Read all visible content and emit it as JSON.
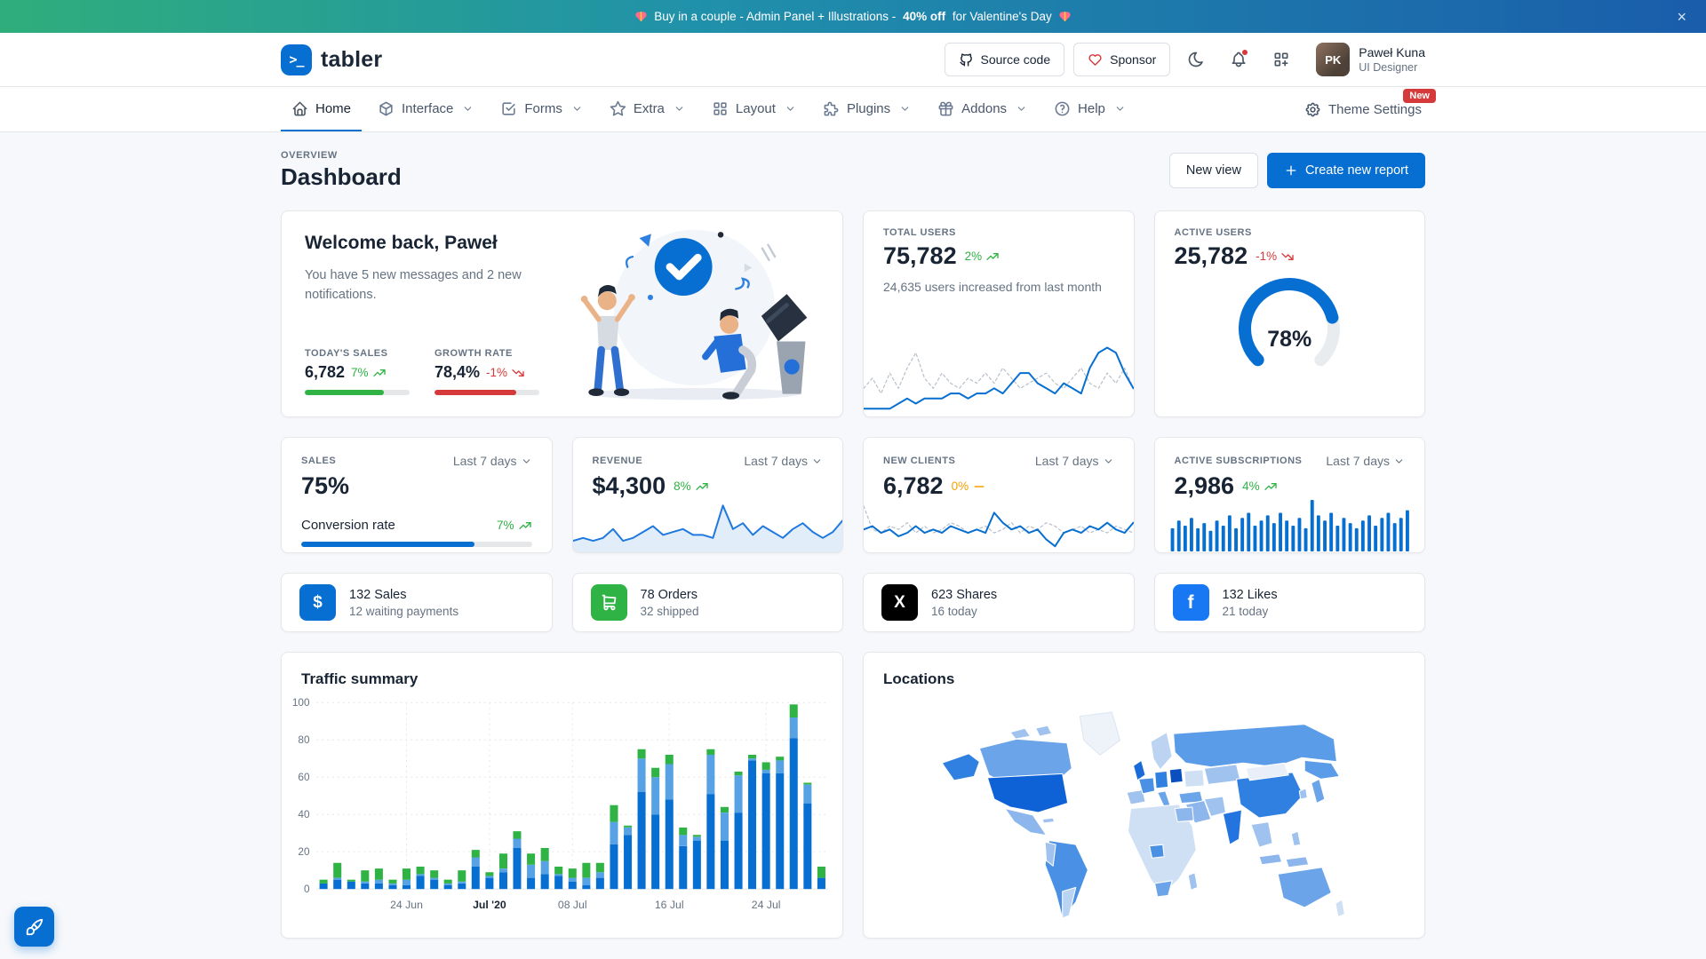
{
  "banner": {
    "message_prefix": "Buy in a couple - Admin Panel + Illustrations - ",
    "message_highlight": "40% off",
    "message_suffix": " for Valentine's Day",
    "close_label": "×"
  },
  "header": {
    "brand": "tabler",
    "logo_glyph": ">_",
    "source_code_label": "Source code",
    "sponsor_label": "Sponsor",
    "user_name": "Paweł Kuna",
    "user_role": "UI Designer",
    "user_initials": "PK"
  },
  "nav": {
    "items": [
      {
        "label": "Home",
        "active": true
      },
      {
        "label": "Interface"
      },
      {
        "label": "Forms"
      },
      {
        "label": "Extra"
      },
      {
        "label": "Layout"
      },
      {
        "label": "Plugins"
      },
      {
        "label": "Addons"
      },
      {
        "label": "Help"
      }
    ],
    "theme_settings_label": "Theme Settings",
    "new_badge": "New"
  },
  "page_header": {
    "pretitle": "OVERVIEW",
    "title": "Dashboard",
    "new_view_label": "New view",
    "create_report_label": "Create new report"
  },
  "welcome": {
    "title": "Welcome back, Paweł",
    "message": "You have 5 new messages and 2 new notifications.",
    "todays_sales_label": "TODAY'S SALES",
    "todays_sales_value": "6,782",
    "todays_sales_delta": "7%",
    "todays_sales_progress": 75,
    "growth_rate_label": "GROWTH RATE",
    "growth_rate_value": "78,4%",
    "growth_rate_delta": "-1%",
    "growth_rate_progress": 78
  },
  "total_users": {
    "label": "TOTAL USERS",
    "value": "75,782",
    "delta": "2%",
    "description": "24,635 users increased from last month"
  },
  "active_users": {
    "label": "ACTIVE USERS",
    "value": "25,782",
    "delta": "-1%",
    "gauge_label": "78%"
  },
  "sales": {
    "label": "SALES",
    "value": "75%",
    "range": "Last 7 days",
    "conversion_label": "Conversion rate",
    "conversion_delta": "7%",
    "conversion_progress": 75
  },
  "revenue": {
    "label": "REVENUE",
    "value": "$4,300",
    "delta": "8%",
    "range": "Last 7 days"
  },
  "new_clients": {
    "label": "NEW CLIENTS",
    "value": "6,782",
    "delta": "0%",
    "range": "Last 7 days"
  },
  "subscriptions": {
    "label": "ACTIVE SUBSCRIPTIONS",
    "value": "2,986",
    "delta": "4%",
    "range": "Last 7 days"
  },
  "stats": [
    {
      "value": "132 Sales",
      "sub": "12 waiting payments",
      "icon": "currency-dollar-icon",
      "color": "#066fd1"
    },
    {
      "value": "78 Orders",
      "sub": "32 shipped",
      "icon": "shopping-cart-icon",
      "color": "#2fb344"
    },
    {
      "value": "623 Shares",
      "sub": "16 today",
      "icon": "brand-x-icon",
      "color": "#000000"
    },
    {
      "value": "132 Likes",
      "sub": "21 today",
      "icon": "brand-facebook-icon",
      "color": "#1877f2"
    }
  ],
  "traffic": {
    "title": "Traffic summary"
  },
  "locations": {
    "title": "Locations"
  },
  "colors": {
    "primary": "#066fd1",
    "green": "#2fb344",
    "red": "#d63939",
    "yellow": "#f59f00"
  },
  "chart_data": [
    {
      "id": "total-users-trend",
      "type": "line",
      "ylim": [
        0,
        15
      ],
      "grid": false,
      "legend": "none",
      "series": [
        {
          "name": "previous period",
          "color": "#b7c0ca",
          "width": 1.2,
          "dash": "3 3",
          "values": [
            5,
            7,
            4,
            8,
            5,
            9,
            12,
            7,
            5,
            8,
            6,
            5,
            7,
            6,
            8,
            6,
            9,
            7,
            5,
            6,
            7,
            8,
            6,
            5,
            7,
            9,
            6,
            5,
            8,
            6,
            9,
            5
          ]
        },
        {
          "name": "current period",
          "color": "#066fd1",
          "width": 2,
          "values": [
            1,
            1,
            1,
            1,
            2,
            3,
            2,
            3,
            3,
            3,
            4,
            4,
            3,
            4,
            4,
            5,
            4,
            6,
            8,
            8,
            6,
            5,
            4,
            6,
            5,
            4,
            9,
            12,
            13,
            12,
            8,
            5
          ]
        }
      ]
    },
    {
      "id": "active-users-gauge",
      "type": "gauge",
      "value": 78,
      "max": 100,
      "label": "78%",
      "color": "#066fd1",
      "track": "#e9ecef"
    },
    {
      "id": "revenue-trend",
      "type": "area",
      "ylim": [
        0,
        16
      ],
      "grid": false,
      "series": [
        {
          "name": "revenue",
          "color": "#2079de",
          "width": 2,
          "fill": "rgba(6,111,209,0.12)",
          "values": [
            3,
            4,
            3,
            4,
            7,
            3,
            4,
            6,
            8,
            5,
            6,
            7,
            5,
            5,
            4,
            15,
            7,
            9,
            5,
            8,
            6,
            4,
            7,
            9,
            6,
            4,
            6,
            10
          ]
        }
      ]
    },
    {
      "id": "new-clients-trend",
      "type": "line",
      "ylim": [
        0,
        14
      ],
      "grid": false,
      "series": [
        {
          "name": "previous period",
          "color": "#b7c0ca",
          "width": 1.2,
          "dash": "3 3",
          "values": [
            13,
            6,
            5,
            7,
            6,
            8,
            5,
            7,
            5,
            6,
            8,
            7,
            5,
            6,
            7,
            5,
            6,
            8,
            5,
            7,
            6,
            8,
            7,
            5,
            6,
            7,
            5,
            6,
            5,
            7,
            6,
            5
          ]
        },
        {
          "name": "current period",
          "color": "#066fd1",
          "width": 2,
          "values": [
            6,
            7,
            5,
            6,
            4,
            5,
            7,
            5,
            6,
            5,
            7,
            6,
            5,
            6,
            5,
            11,
            8,
            6,
            7,
            5,
            6,
            3,
            1,
            5,
            6,
            5,
            7,
            6,
            8,
            6,
            5,
            8
          ]
        }
      ]
    },
    {
      "id": "subscriptions-bars",
      "type": "bar",
      "ylim": [
        0,
        20
      ],
      "color": "#066fd1",
      "values": [
        9,
        12,
        10,
        13,
        9,
        11,
        8,
        12,
        10,
        14,
        9,
        13,
        15,
        10,
        12,
        14,
        11,
        15,
        12,
        10,
        13,
        9,
        20,
        14,
        12,
        15,
        10,
        13,
        11,
        9,
        12,
        14,
        10,
        13,
        15,
        11,
        13,
        16
      ]
    },
    {
      "id": "traffic-summary",
      "type": "stacked-bar",
      "title": "Traffic summary",
      "ylim": [
        0,
        100
      ],
      "yticks": [
        0,
        20,
        40,
        60,
        80,
        100
      ],
      "grid": "dashed",
      "legend": "none",
      "x_labels": [
        {
          "index": 6,
          "label": "24 Jun"
        },
        {
          "index": 12,
          "label": "Jul '20",
          "bold": true
        },
        {
          "index": 18,
          "label": "08 Jul"
        },
        {
          "index": 25,
          "label": "16 Jul"
        },
        {
          "index": 32,
          "label": "24 Jul"
        }
      ],
      "series": [
        {
          "name": "series-1",
          "color": "#066fd1",
          "values": [
            3,
            5,
            4,
            3,
            3,
            2,
            2,
            7,
            5,
            2,
            3,
            12,
            6,
            9,
            22,
            6,
            8,
            7,
            4,
            2,
            6,
            24,
            29,
            52,
            40,
            48,
            23,
            26,
            51,
            26,
            41,
            69,
            62,
            62,
            81,
            46,
            6
          ]
        },
        {
          "name": "series-2",
          "color": "#57a2e4",
          "values": [
            0,
            1,
            0,
            1,
            2,
            1,
            3,
            1,
            1,
            1,
            1,
            5,
            1,
            2,
            5,
            7,
            7,
            1,
            2,
            4,
            3,
            12,
            4,
            18,
            20,
            19,
            6,
            2,
            21,
            15,
            20,
            1,
            2,
            7,
            11,
            10,
            0
          ]
        },
        {
          "name": "series-3",
          "color": "#2fb344",
          "values": [
            2,
            8,
            1,
            6,
            6,
            2,
            6,
            4,
            4,
            2,
            6,
            4,
            2,
            8,
            4,
            6,
            7,
            4,
            5,
            8,
            5,
            9,
            1,
            5,
            5,
            5,
            4,
            1,
            3,
            3,
            2,
            2,
            4,
            2,
            7,
            1,
            6
          ]
        }
      ]
    }
  ]
}
